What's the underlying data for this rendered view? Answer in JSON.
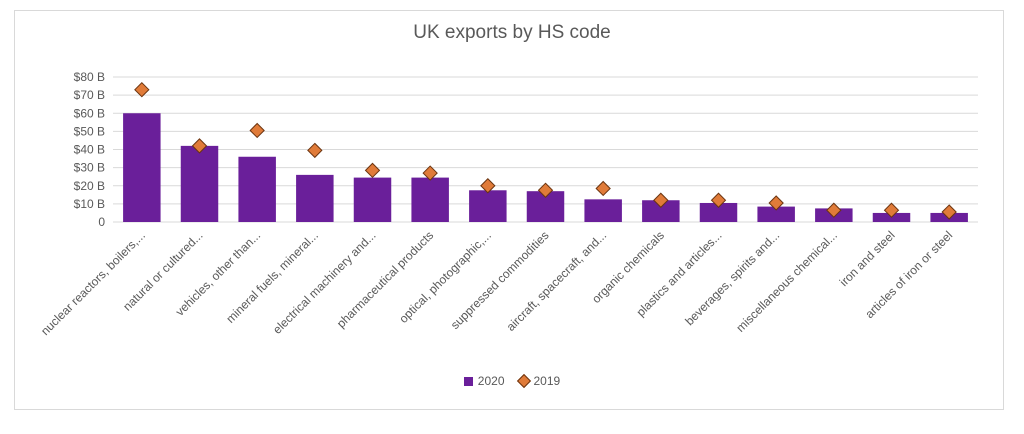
{
  "chart_data": {
    "type": "bar",
    "title": "UK exports by HS code",
    "xlabel": "",
    "ylabel": "",
    "ylim": [
      0,
      80
    ],
    "yticks": [
      "0",
      "$10 B",
      "$20 B",
      "$30 B",
      "$40 B",
      "$50 B",
      "$60 B",
      "$70 B",
      "$80 B"
    ],
    "ytick_values": [
      0,
      10,
      20,
      30,
      40,
      50,
      60,
      70,
      80
    ],
    "grid": true,
    "legend_position": "bottom",
    "categories": [
      "nuclear reactors, boilers,...",
      "natural or cultured...",
      "vehicles, other than...",
      "mineral fuels, mineral...",
      "electrical machinery and...",
      "pharmaceutical products",
      "optical, photographic,...",
      "suppressed commodities",
      "aircraft, spacecraft, and...",
      "organic chemicals",
      "plastics and articles...",
      "beverages, spirits and...",
      "miscellaneous chemical...",
      "iron and steel",
      "articles of iron or steel"
    ],
    "series": [
      {
        "name": "2020",
        "marker": "bar",
        "color": "#6a1f9a",
        "values": [
          60,
          42,
          36,
          26,
          24.5,
          24.5,
          17.5,
          17,
          12.5,
          12,
          10.5,
          8.5,
          7.5,
          5,
          5
        ]
      },
      {
        "name": "2019",
        "marker": "diamond",
        "color": "#e07b39",
        "values": [
          73,
          42,
          50.5,
          39.5,
          28.5,
          27,
          20,
          17.5,
          18.5,
          12,
          12,
          10.5,
          6.5,
          6.5,
          5.5
        ]
      }
    ]
  }
}
